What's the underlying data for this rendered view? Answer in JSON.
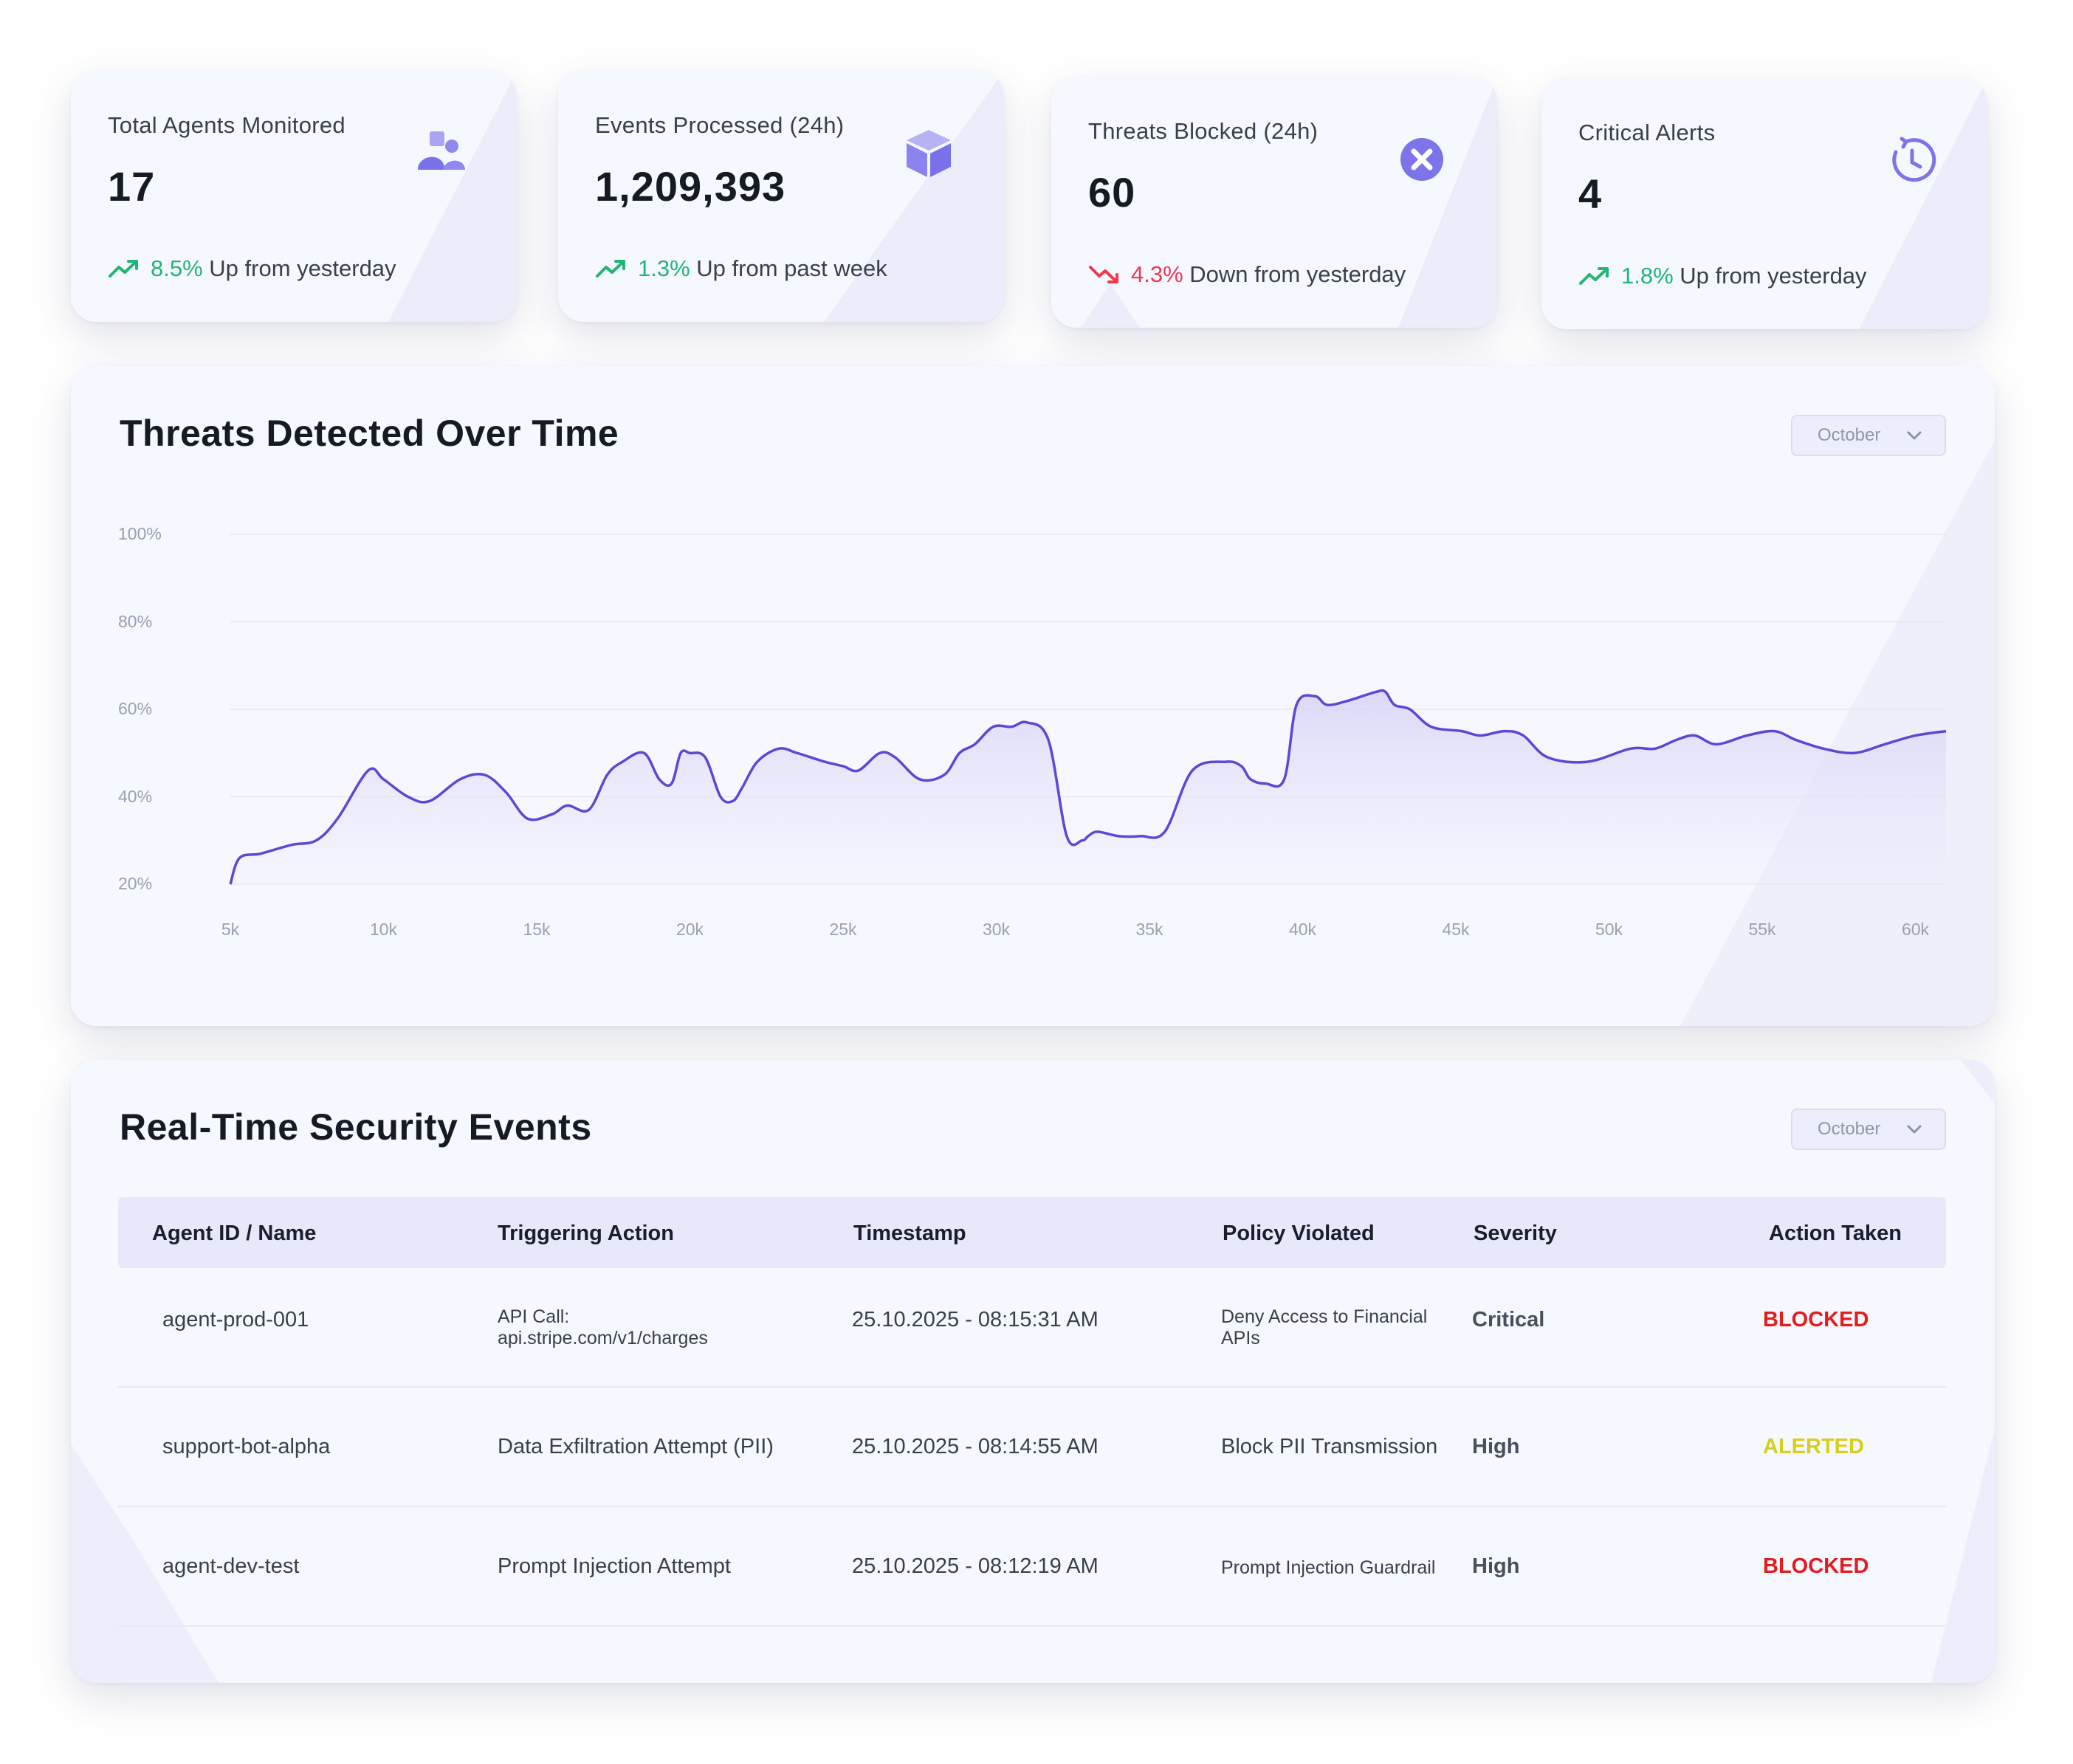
{
  "kpis": [
    {
      "label": "Total Agents Monitored",
      "value": "17",
      "pct": "8.5%",
      "direction": "up",
      "trend_text": "Up from yesterday",
      "icon": "users-icon"
    },
    {
      "label": "Events Processed (24h)",
      "value": "1,209,393",
      "pct": "1.3%",
      "direction": "up",
      "trend_text": "Up from past week",
      "icon": "cube-icon"
    },
    {
      "label": "Threats Blocked (24h)",
      "value": "60",
      "pct": "4.3%",
      "direction": "down",
      "trend_text": "Down from yesterday",
      "icon": "x-circle-icon"
    },
    {
      "label": "Critical Alerts",
      "value": "4",
      "pct": "1.8%",
      "direction": "up",
      "trend_text": "Up from yesterday",
      "icon": "history-icon"
    }
  ],
  "colors": {
    "accent": "#6c63e6",
    "up": "#22b573",
    "down": "#f0384f",
    "blocked": "#e41c1c",
    "alerted": "#d6cf1e",
    "card_bg": "#f6f8ff",
    "table_header_bg": "#e7e9fb"
  },
  "chart_panel": {
    "title": "Threats Detected Over Time",
    "dropdown": "October"
  },
  "chart_data": {
    "type": "area",
    "title": "Threats Detected Over Time",
    "xlabel": "",
    "ylabel": "",
    "x_ticks": [
      "5k",
      "10k",
      "15k",
      "20k",
      "25k",
      "30k",
      "35k",
      "40k",
      "45k",
      "50k",
      "55k",
      "60k"
    ],
    "y_ticks": [
      "100%",
      "80%",
      "60%",
      "40%",
      "20%"
    ],
    "xlim": [
      5000,
      61000
    ],
    "ylim": [
      20,
      100
    ],
    "grid": true,
    "legend": "none",
    "series": [
      {
        "x": [
          5000,
          5300,
          6000,
          7000,
          7800,
          8500,
          9500,
          10000,
          10800,
          11500,
          12500,
          13300,
          14000,
          14700,
          15500,
          16000,
          16700,
          17300,
          17800,
          18500,
          19000,
          19400,
          19700,
          20000,
          20500,
          21000,
          21400,
          21700,
          22200,
          22900,
          23500,
          24400,
          25000,
          25500,
          26200,
          26700,
          27500,
          28300,
          28800,
          29300,
          29900,
          30500,
          31000,
          31700,
          32300,
          32800,
          33000,
          33300,
          34000,
          34700,
          35500,
          36400,
          37500,
          38000,
          38300,
          38800,
          39400,
          39800,
          40400,
          40800,
          41500,
          42400,
          42700,
          43000,
          43500,
          44200,
          45200,
          45800,
          46600,
          47200,
          48000,
          49300,
          50700,
          51500,
          52200,
          52800,
          53500,
          54500,
          55400,
          56100,
          57000,
          58000,
          59000,
          60000,
          61000
        ],
        "y": [
          20,
          26,
          27,
          29,
          30,
          35,
          46,
          44,
          40,
          39,
          44,
          45,
          41,
          35,
          36,
          38,
          37,
          45,
          48,
          50,
          44,
          43,
          50,
          50,
          49,
          40,
          39,
          42,
          48,
          51,
          50,
          48,
          47,
          46,
          50,
          49,
          44,
          45,
          50,
          52,
          56,
          56,
          57,
          53,
          31,
          30,
          31,
          32,
          31,
          31,
          32,
          46,
          48,
          47,
          44,
          43,
          44,
          61,
          63,
          61,
          62,
          64,
          64,
          61,
          60,
          56,
          55,
          54,
          55,
          54,
          49,
          48,
          51,
          51,
          53,
          54,
          52,
          54,
          55,
          53,
          51,
          50,
          52,
          54,
          55
        ]
      }
    ]
  },
  "events_panel": {
    "title": "Real-Time Security Events",
    "dropdown": "October",
    "columns": [
      "Agent ID / Name",
      "Triggering Action",
      "Timestamp",
      "Policy Violated",
      "Severity",
      "Action Taken"
    ],
    "rows": [
      {
        "agent": "agent-prod-001",
        "action_l1": "API Call:",
        "action_l2": "api.stripe.com/v1/charges",
        "timestamp": "25.10.2025 - 08:15:31 AM",
        "policy_l1": "Deny Access to Financial",
        "policy_l2": "APIs",
        "severity": "Critical",
        "taken": "BLOCKED"
      },
      {
        "agent": "support-bot-alpha",
        "action_l1": "Data Exfiltration Attempt (PII)",
        "action_l2": "",
        "timestamp": "25.10.2025 - 08:14:55 AM",
        "policy_l1": "Block PII Transmission",
        "policy_l2": "",
        "severity": "High",
        "taken": "ALERTED"
      },
      {
        "agent": "agent-dev-test",
        "action_l1": "Prompt Injection Attempt",
        "action_l2": "",
        "timestamp": "25.10.2025 - 08:12:19 AM",
        "policy_l1": "Prompt Injection Guardrail",
        "policy_l2": "",
        "severity": "High",
        "taken": "BLOCKED"
      }
    ]
  }
}
